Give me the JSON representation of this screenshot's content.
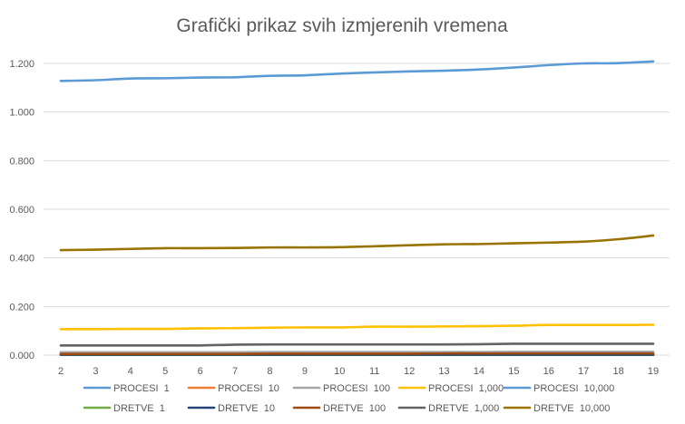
{
  "chart_data": {
    "type": "line",
    "title": "Grafički prikaz svih izmjerenih vremena",
    "xlabel": "",
    "ylabel": "",
    "x": [
      2,
      3,
      4,
      5,
      6,
      7,
      8,
      9,
      10,
      11,
      12,
      13,
      14,
      15,
      16,
      17,
      18,
      19
    ],
    "x_tick_labels": [
      "2",
      "3",
      "4",
      "5",
      "6",
      "7",
      "8",
      "9",
      "10",
      "11",
      "12",
      "13",
      "14",
      "15",
      "16",
      "17",
      "18",
      "19"
    ],
    "ylim": [
      0,
      1.2
    ],
    "y_ticks": [
      0,
      0.2,
      0.4,
      0.6,
      0.8,
      1.0,
      1.2
    ],
    "y_tick_labels": [
      "0.000",
      "0.200",
      "0.400",
      "0.600",
      "0.800",
      "1.000",
      "1.200"
    ],
    "grid": true,
    "legend_position": "bottom",
    "series": [
      {
        "name": "PROCESI  1",
        "color": "#5B9BD5",
        "values": [
          0.001,
          0.001,
          0.001,
          0.001,
          0.001,
          0.001,
          0.001,
          0.001,
          0.001,
          0.001,
          0.001,
          0.001,
          0.001,
          0.001,
          0.001,
          0.001,
          0.001,
          0.001
        ]
      },
      {
        "name": "PROCESI  10",
        "color": "#ED7D31",
        "values": [
          0.003,
          0.003,
          0.003,
          0.003,
          0.003,
          0.003,
          0.003,
          0.003,
          0.003,
          0.003,
          0.003,
          0.003,
          0.003,
          0.004,
          0.004,
          0.004,
          0.004,
          0.004
        ]
      },
      {
        "name": "PROCESI  100",
        "color": "#A5A5A5",
        "values": [
          0.012,
          0.012,
          0.012,
          0.012,
          0.012,
          0.012,
          0.013,
          0.013,
          0.013,
          0.013,
          0.013,
          0.013,
          0.013,
          0.014,
          0.014,
          0.014,
          0.014,
          0.014
        ]
      },
      {
        "name": "PROCESI  1,000",
        "color": "#FFC000",
        "values": [
          0.107,
          0.107,
          0.108,
          0.108,
          0.11,
          0.111,
          0.113,
          0.114,
          0.114,
          0.117,
          0.117,
          0.118,
          0.119,
          0.121,
          0.124,
          0.124,
          0.124,
          0.125
        ]
      },
      {
        "name": "PROCESI  10,000",
        "color": "#5B9BD5",
        "values": [
          1.128,
          1.131,
          1.138,
          1.139,
          1.142,
          1.143,
          1.149,
          1.151,
          1.158,
          1.163,
          1.167,
          1.17,
          1.175,
          1.183,
          1.193,
          1.2,
          1.201,
          1.208
        ]
      },
      {
        "name": "DRETVE  1",
        "color": "#70AD47",
        "values": [
          0.001,
          0.001,
          0.001,
          0.001,
          0.001,
          0.001,
          0.001,
          0.001,
          0.001,
          0.001,
          0.001,
          0.001,
          0.001,
          0.001,
          0.001,
          0.001,
          0.001,
          0.001
        ]
      },
      {
        "name": "DRETVE  10",
        "color": "#264478",
        "values": [
          0.002,
          0.002,
          0.002,
          0.002,
          0.002,
          0.002,
          0.002,
          0.002,
          0.002,
          0.002,
          0.002,
          0.002,
          0.002,
          0.002,
          0.002,
          0.002,
          0.002,
          0.002
        ]
      },
      {
        "name": "DRETVE  100",
        "color": "#9E480E",
        "values": [
          0.005,
          0.005,
          0.005,
          0.005,
          0.005,
          0.005,
          0.006,
          0.006,
          0.006,
          0.006,
          0.006,
          0.007,
          0.007,
          0.007,
          0.007,
          0.007,
          0.007,
          0.007
        ]
      },
      {
        "name": "DRETVE  1,000",
        "color": "#636363",
        "values": [
          0.04,
          0.04,
          0.04,
          0.04,
          0.04,
          0.043,
          0.044,
          0.044,
          0.044,
          0.044,
          0.044,
          0.044,
          0.045,
          0.047,
          0.047,
          0.047,
          0.047,
          0.047
        ]
      },
      {
        "name": "DRETVE  10,000",
        "color": "#997300",
        "values": [
          0.432,
          0.434,
          0.437,
          0.44,
          0.44,
          0.441,
          0.443,
          0.443,
          0.444,
          0.448,
          0.452,
          0.456,
          0.457,
          0.46,
          0.463,
          0.467,
          0.477,
          0.492
        ]
      }
    ]
  }
}
